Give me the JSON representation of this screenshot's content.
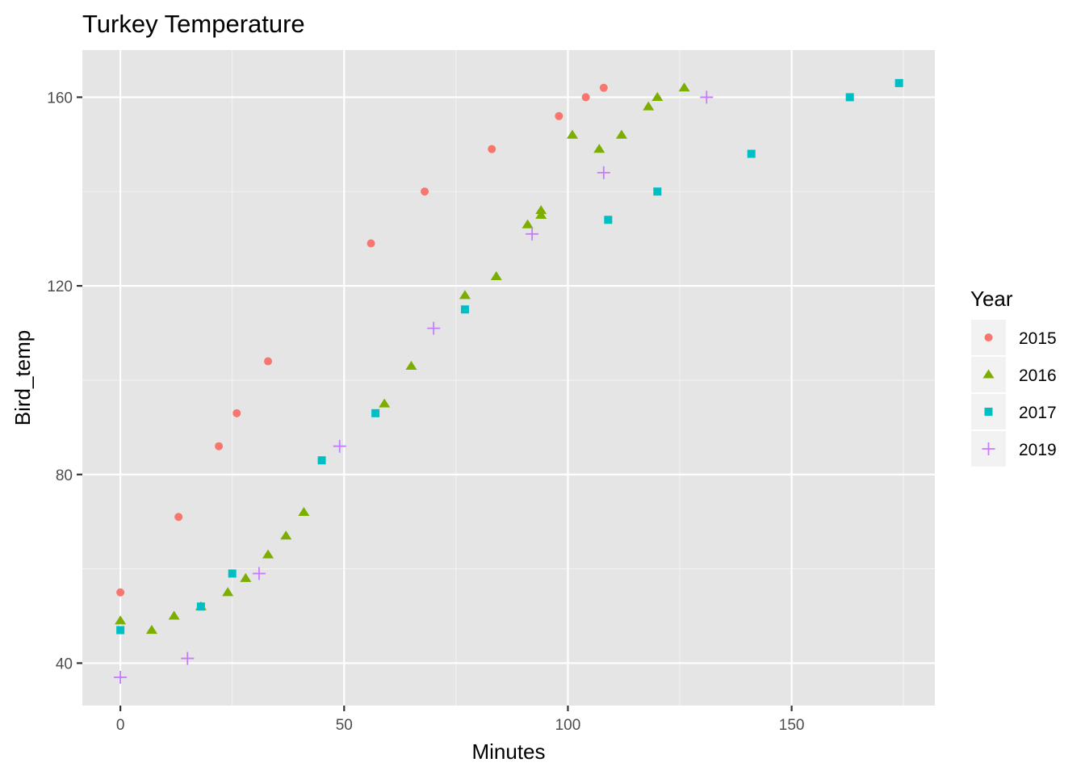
{
  "chart_data": {
    "type": "scatter",
    "title": "Turkey Temperature",
    "xlabel": "Minutes",
    "ylabel": "Bird_temp",
    "xlim": [
      -8.5,
      182
    ],
    "ylim": [
      31,
      170
    ],
    "x_ticks": [
      0,
      50,
      100,
      150
    ],
    "y_ticks": [
      40,
      80,
      120,
      160
    ],
    "grid": true,
    "panel_background": "#e5e5e5",
    "legend": {
      "title": "Year",
      "position": "right"
    },
    "series": [
      {
        "name": "2015",
        "shape": "circle",
        "color": "#f8766d",
        "points": [
          {
            "x": 0,
            "y": 55
          },
          {
            "x": 13,
            "y": 71
          },
          {
            "x": 22,
            "y": 86
          },
          {
            "x": 26,
            "y": 93
          },
          {
            "x": 33,
            "y": 104
          },
          {
            "x": 56,
            "y": 129
          },
          {
            "x": 68,
            "y": 140
          },
          {
            "x": 83,
            "y": 149
          },
          {
            "x": 98,
            "y": 156
          },
          {
            "x": 104,
            "y": 160
          },
          {
            "x": 108,
            "y": 162
          }
        ]
      },
      {
        "name": "2016",
        "shape": "triangle",
        "color": "#7cae00",
        "points": [
          {
            "x": 0,
            "y": 49
          },
          {
            "x": 7,
            "y": 47
          },
          {
            "x": 12,
            "y": 50
          },
          {
            "x": 18,
            "y": 52
          },
          {
            "x": 24,
            "y": 55
          },
          {
            "x": 28,
            "y": 58
          },
          {
            "x": 33,
            "y": 63
          },
          {
            "x": 37,
            "y": 67
          },
          {
            "x": 41,
            "y": 72
          },
          {
            "x": 59,
            "y": 95
          },
          {
            "x": 65,
            "y": 103
          },
          {
            "x": 77,
            "y": 118
          },
          {
            "x": 84,
            "y": 122
          },
          {
            "x": 91,
            "y": 133
          },
          {
            "x": 94,
            "y": 135
          },
          {
            "x": 94,
            "y": 136
          },
          {
            "x": 101,
            "y": 152
          },
          {
            "x": 107,
            "y": 149
          },
          {
            "x": 112,
            "y": 152
          },
          {
            "x": 118,
            "y": 158
          },
          {
            "x": 120,
            "y": 160
          },
          {
            "x": 126,
            "y": 162
          }
        ]
      },
      {
        "name": "2017",
        "shape": "square",
        "color": "#00bfc4",
        "points": [
          {
            "x": 0,
            "y": 47
          },
          {
            "x": 18,
            "y": 52
          },
          {
            "x": 25,
            "y": 59
          },
          {
            "x": 45,
            "y": 83
          },
          {
            "x": 57,
            "y": 93
          },
          {
            "x": 77,
            "y": 115
          },
          {
            "x": 109,
            "y": 134
          },
          {
            "x": 120,
            "y": 140
          },
          {
            "x": 141,
            "y": 148
          },
          {
            "x": 163,
            "y": 160
          },
          {
            "x": 174,
            "y": 163
          }
        ]
      },
      {
        "name": "2019",
        "shape": "plus",
        "color": "#c77cff",
        "points": [
          {
            "x": 0,
            "y": 37
          },
          {
            "x": 15,
            "y": 41
          },
          {
            "x": 31,
            "y": 59
          },
          {
            "x": 49,
            "y": 86
          },
          {
            "x": 70,
            "y": 111
          },
          {
            "x": 92,
            "y": 131
          },
          {
            "x": 108,
            "y": 144
          },
          {
            "x": 131,
            "y": 160
          }
        ]
      }
    ]
  }
}
